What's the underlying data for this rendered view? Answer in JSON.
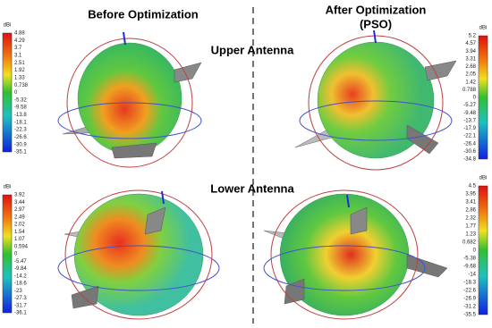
{
  "titles": {
    "before": "Before Optimization",
    "after": [
      "After Optimization",
      "(PSO)"
    ]
  },
  "rows": {
    "upper": "Upper Antenna",
    "lower": "Lower Antenna"
  },
  "colorbars": [
    {
      "unit": "dBi",
      "ticks": [
        "4.88",
        "4.29",
        "3.7",
        "3.1",
        "2.51",
        "1.92",
        "1.33",
        "0.738",
        "0",
        "-5.32",
        "-9.58",
        "-13.8",
        "-18.1",
        "-22.3",
        "-26.6",
        "-30.9",
        "-35.1"
      ]
    },
    {
      "unit": "dBi",
      "ticks": [
        "5.2",
        "4.57",
        "3.94",
        "3.31",
        "2.68",
        "2.05",
        "1.42",
        "0.788",
        "0",
        "-5.27",
        "-9.48",
        "-13.7",
        "-17.9",
        "-22.1",
        "-26.4",
        "-30.6",
        "-34.8"
      ]
    },
    {
      "unit": "dBi",
      "ticks": [
        "3.92",
        "3.44",
        "2.97",
        "2.49",
        "2.02",
        "1.54",
        "1.07",
        "0.594",
        "0",
        "-5.47",
        "-9.84",
        "-14.2",
        "-18.6",
        "-23",
        "-27.3",
        "-31.7",
        "-36.1"
      ]
    },
    {
      "unit": "dBi",
      "ticks": [
        "4.5",
        "3.95",
        "3.41",
        "2.86",
        "2.32",
        "1.77",
        "1.23",
        "0.682",
        "0",
        "-5.38",
        "-9.68",
        "-14",
        "-18.3",
        "-22.6",
        "-26.9",
        "-31.2",
        "-35.5"
      ]
    }
  ]
}
